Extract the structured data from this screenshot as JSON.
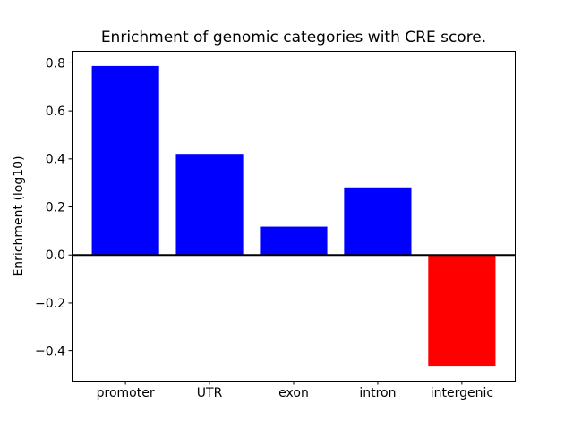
{
  "chart_data": {
    "type": "bar",
    "title": "Enrichment of genomic categories with CRE score.",
    "xlabel": "",
    "ylabel": "Enrichment (log10)",
    "categories": [
      "promoter",
      "UTR",
      "exon",
      "intron",
      "intergenic"
    ],
    "values": [
      0.787,
      0.421,
      0.118,
      0.281,
      -0.465
    ],
    "bar_colors": [
      "#0000ff",
      "#0000ff",
      "#0000ff",
      "#0000ff",
      "#ff0000"
    ],
    "positive_color": "#0000ff",
    "negative_color": "#ff0000",
    "ylim": [
      -0.528,
      0.85
    ],
    "xlim": [
      -0.64,
      4.64
    ],
    "yticks": [
      0.8,
      0.6,
      0.4,
      0.2,
      0.0,
      -0.2,
      -0.4
    ],
    "ytick_labels": [
      "0.8",
      "0.6",
      "0.4",
      "0.2",
      "0.0",
      "−0.2",
      "−0.4"
    ],
    "bar_width_fraction": 0.8,
    "grid": false,
    "legend": "none",
    "zero_line": true,
    "axis_color": "#000000",
    "background_color": "#ffffff"
  }
}
